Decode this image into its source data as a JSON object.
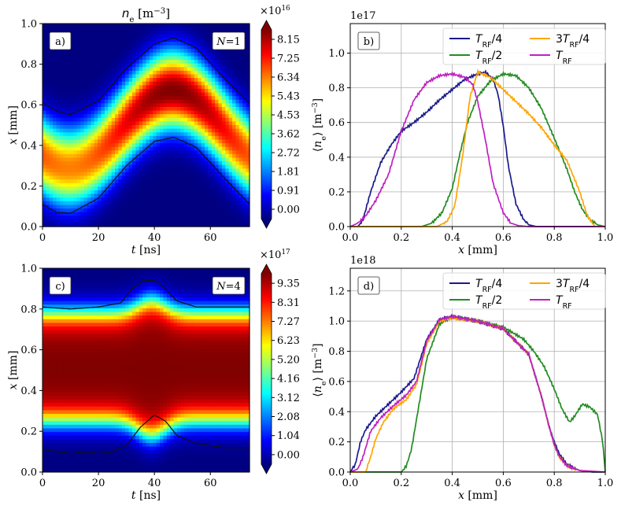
{
  "chart_data": [
    {
      "id": "a",
      "type": "heatmap",
      "panel_label": "a)",
      "title": "n_e [m^-3]",
      "title_main": "n",
      "title_sub": "e",
      "title_unit": "[m",
      "title_exp": "−3",
      "title_close": "]",
      "xlabel_var": "t",
      "xlabel_unit": " [ns]",
      "ylabel_var": "x",
      "ylabel_unit": " [mm]",
      "xlim": [
        0,
        74
      ],
      "ylim": [
        0,
        1
      ],
      "xticks": [
        "0",
        "20",
        "40",
        "60"
      ],
      "yticks": [
        "0.0",
        "0.2",
        "0.4",
        "0.6",
        "0.8",
        "1.0"
      ],
      "annotation_var": "N",
      "annotation_val": "=1",
      "colorbar_scale_base": "×10",
      "colorbar_scale_exp": "16",
      "colorbar_ticks": [
        "0.00",
        "0.91",
        "1.81",
        "2.72",
        "3.62",
        "4.53",
        "5.43",
        "6.34",
        "7.25",
        "8.15"
      ],
      "field": {
        "kind": "oscillating",
        "mid": 0.48,
        "amp": 0.19,
        "period": 74,
        "t_min": 9.5,
        "halfwidth": 0.185,
        "power": 2.2,
        "amp_base": 0.45,
        "amp_var": 0.55
      },
      "contour_upper": {
        "x": [
          0,
          5,
          10,
          20,
          30,
          40,
          47,
          55,
          65,
          74
        ],
        "y": [
          0.61,
          0.57,
          0.55,
          0.62,
          0.78,
          0.9,
          0.93,
          0.88,
          0.73,
          0.61
        ]
      },
      "contour_lower": {
        "x": [
          0,
          5,
          10,
          20,
          30,
          40,
          47,
          55,
          65,
          74
        ],
        "y": [
          0.11,
          0.07,
          0.065,
          0.14,
          0.3,
          0.42,
          0.44,
          0.39,
          0.24,
          0.11
        ]
      }
    },
    {
      "id": "b",
      "type": "line",
      "panel_label": "b)",
      "offset_text": "1e17",
      "xlabel_var": "x",
      "xlabel_unit": " [mm]",
      "ylabel": "⟨n_e⟩ [m^-3]",
      "xlim": [
        0,
        1
      ],
      "ylim": [
        0,
        1.17
      ],
      "xticks": [
        "0.0",
        "0.2",
        "0.4",
        "0.6",
        "0.8",
        "1.0"
      ],
      "yticks": [
        "0.0",
        "0.2",
        "0.4",
        "0.6",
        "0.8",
        "1.0"
      ],
      "grid": true,
      "legend_position": "top-right",
      "series": [
        {
          "name": "T_RF/4",
          "legend_prefix": "",
          "legend_var": "T",
          "legend_sub": "RF",
          "legend_suffix": "/4",
          "color": "#1a1a8c",
          "x": [
            0,
            0.03,
            0.05,
            0.08,
            0.12,
            0.16,
            0.2,
            0.25,
            0.3,
            0.35,
            0.4,
            0.45,
            0.5,
            0.53,
            0.56,
            0.58,
            0.6,
            0.62,
            0.65,
            0.68,
            0.7,
            0.73,
            1.0
          ],
          "y": [
            0,
            0,
            0.04,
            0.2,
            0.37,
            0.47,
            0.55,
            0.6,
            0.66,
            0.73,
            0.79,
            0.85,
            0.88,
            0.89,
            0.85,
            0.76,
            0.58,
            0.35,
            0.13,
            0.04,
            0.01,
            0,
            0
          ]
        },
        {
          "name": "T_RF/2",
          "legend_prefix": "",
          "legend_var": "T",
          "legend_sub": "RF",
          "legend_suffix": "/2",
          "color": "#228b22",
          "x": [
            0,
            0.28,
            0.32,
            0.36,
            0.4,
            0.43,
            0.46,
            0.5,
            0.55,
            0.6,
            0.65,
            0.7,
            0.75,
            0.8,
            0.85,
            0.88,
            0.91,
            0.94,
            0.97,
            1.0
          ],
          "y": [
            0,
            0,
            0.02,
            0.08,
            0.22,
            0.42,
            0.6,
            0.75,
            0.84,
            0.88,
            0.87,
            0.8,
            0.68,
            0.51,
            0.33,
            0.2,
            0.1,
            0.04,
            0.01,
            0
          ]
        },
        {
          "name": "3T_RF/4",
          "legend_prefix": "3",
          "legend_var": "T",
          "legend_sub": "RF",
          "legend_suffix": "/4",
          "color": "#ffa500",
          "x": [
            0,
            0.34,
            0.38,
            0.41,
            0.44,
            0.47,
            0.5,
            0.55,
            0.6,
            0.65,
            0.7,
            0.75,
            0.8,
            0.85,
            0.9,
            0.93,
            0.96,
            1.0
          ],
          "y": [
            0,
            0,
            0.03,
            0.12,
            0.4,
            0.75,
            0.89,
            0.86,
            0.79,
            0.72,
            0.65,
            0.57,
            0.47,
            0.38,
            0.2,
            0.06,
            0,
            0
          ]
        },
        {
          "name": "T_RF",
          "legend_prefix": "",
          "legend_var": "T",
          "legend_sub": "RF",
          "legend_suffix": "",
          "color": "#c020c0",
          "x": [
            0,
            0.03,
            0.06,
            0.1,
            0.15,
            0.2,
            0.25,
            0.3,
            0.35,
            0.4,
            0.45,
            0.48,
            0.5,
            0.53,
            0.56,
            0.6,
            0.63,
            0.66,
            0.7,
            1.0
          ],
          "y": [
            0,
            0.02,
            0.06,
            0.15,
            0.3,
            0.55,
            0.73,
            0.83,
            0.87,
            0.88,
            0.86,
            0.82,
            0.72,
            0.5,
            0.25,
            0.08,
            0.02,
            0.005,
            0,
            0
          ]
        }
      ]
    },
    {
      "id": "c",
      "type": "heatmap",
      "panel_label": "c)",
      "xlabel_var": "t",
      "xlabel_unit": " [ns]",
      "ylabel_var": "x",
      "ylabel_unit": " [mm]",
      "xlim": [
        0,
        74
      ],
      "ylim": [
        0,
        1
      ],
      "xticks": [
        "0",
        "20",
        "40",
        "60"
      ],
      "yticks": [
        "0.0",
        "0.2",
        "0.4",
        "0.6",
        "0.8",
        "1.0"
      ],
      "annotation_var": "N",
      "annotation_val": "=4",
      "colorbar_scale_base": "×10",
      "colorbar_scale_exp": "17",
      "colorbar_ticks": [
        "0.00",
        "1.04",
        "2.08",
        "3.12",
        "4.16",
        "5.20",
        "6.23",
        "7.27",
        "8.31",
        "9.35"
      ],
      "field": {
        "kind": "plateau",
        "low_edge": 0.25,
        "high_edge": 0.78,
        "edge_width": 0.035,
        "bump_t": 39,
        "bump_w": 7,
        "bump_upper": 0.1,
        "bump_lower": 0.12
      },
      "contour_upper": {
        "x": [
          0,
          10,
          20,
          28,
          32,
          36,
          40,
          44,
          48,
          55,
          65,
          74
        ],
        "y": [
          0.81,
          0.8,
          0.81,
          0.83,
          0.9,
          0.94,
          0.94,
          0.9,
          0.84,
          0.81,
          0.81,
          0.81
        ]
      },
      "contour_lower": {
        "x": [
          0,
          5,
          10,
          16,
          20,
          25,
          30,
          35,
          40,
          44,
          48,
          55,
          60,
          65,
          74
        ],
        "y": [
          0.11,
          0.1,
          0.09,
          0.1,
          0.09,
          0.1,
          0.13,
          0.22,
          0.28,
          0.25,
          0.18,
          0.14,
          0.13,
          0.12,
          0.12
        ]
      }
    },
    {
      "id": "d",
      "type": "line",
      "panel_label": "d)",
      "offset_text": "1e18",
      "xlabel_var": "x",
      "xlabel_unit": " [mm]",
      "ylabel": "⟨n_e⟩ [m^-3]",
      "xlim": [
        0,
        1
      ],
      "ylim": [
        0,
        1.35
      ],
      "xticks": [
        "0.0",
        "0.2",
        "0.4",
        "0.6",
        "0.8",
        "1.0"
      ],
      "yticks": [
        "0.0",
        "0.2",
        "0.4",
        "0.6",
        "0.8",
        "1.0",
        "1.2"
      ],
      "grid": true,
      "legend_position": "top-right",
      "series": [
        {
          "name": "T_RF/4",
          "legend_prefix": "",
          "legend_var": "T",
          "legend_sub": "RF",
          "legend_suffix": "/4",
          "color": "#1a1a8c",
          "x": [
            0,
            0.02,
            0.04,
            0.06,
            0.1,
            0.15,
            0.2,
            0.25,
            0.3,
            0.35,
            0.4,
            0.5,
            0.6,
            0.7,
            0.75,
            0.78,
            0.8,
            0.82,
            0.85,
            0.9,
            0.95,
            1.0
          ],
          "y": [
            0,
            0.05,
            0.2,
            0.28,
            0.37,
            0.45,
            0.53,
            0.62,
            0.88,
            1.01,
            1.03,
            1.0,
            0.95,
            0.78,
            0.5,
            0.3,
            0.2,
            0.12,
            0.05,
            0.01,
            0,
            0
          ]
        },
        {
          "name": "T_RF/2",
          "legend_prefix": "",
          "legend_var": "T",
          "legend_sub": "RF",
          "legend_suffix": "/2",
          "color": "#228b22",
          "x": [
            0,
            0.2,
            0.22,
            0.24,
            0.26,
            0.3,
            0.35,
            0.4,
            0.5,
            0.6,
            0.68,
            0.72,
            0.76,
            0.8,
            0.83,
            0.86,
            0.88,
            0.91,
            0.94,
            0.97,
            0.99,
            1.0
          ],
          "y": [
            0,
            0,
            0.04,
            0.15,
            0.35,
            0.75,
            0.98,
            1.03,
            1.0,
            0.96,
            0.88,
            0.8,
            0.7,
            0.55,
            0.42,
            0.33,
            0.37,
            0.45,
            0.43,
            0.38,
            0.2,
            0
          ]
        },
        {
          "name": "3T_RF/4",
          "legend_prefix": "3",
          "legend_var": "T",
          "legend_sub": "RF",
          "legend_suffix": "/4",
          "color": "#ffa500",
          "x": [
            0,
            0.06,
            0.08,
            0.1,
            0.13,
            0.17,
            0.22,
            0.26,
            0.3,
            0.35,
            0.4,
            0.5,
            0.6,
            0.7,
            0.75,
            0.78,
            0.8,
            0.82,
            0.85,
            0.9,
            1.0
          ],
          "y": [
            0,
            0,
            0.1,
            0.22,
            0.33,
            0.42,
            0.48,
            0.58,
            0.85,
            1.0,
            1.02,
            1.0,
            0.95,
            0.78,
            0.5,
            0.3,
            0.18,
            0.1,
            0.04,
            0.01,
            0
          ]
        },
        {
          "name": "T_RF",
          "legend_prefix": "",
          "legend_var": "T",
          "legend_sub": "RF",
          "legend_suffix": "",
          "color": "#c020c0",
          "x": [
            0,
            0.03,
            0.05,
            0.08,
            0.12,
            0.17,
            0.22,
            0.26,
            0.3,
            0.35,
            0.4,
            0.5,
            0.6,
            0.7,
            0.75,
            0.78,
            0.8,
            0.82,
            0.85,
            0.9,
            1.0
          ],
          "y": [
            0,
            0.02,
            0.1,
            0.27,
            0.36,
            0.44,
            0.51,
            0.6,
            0.87,
            1.01,
            1.03,
            1.0,
            0.95,
            0.78,
            0.5,
            0.3,
            0.18,
            0.1,
            0.04,
            0.01,
            0
          ]
        }
      ]
    }
  ]
}
